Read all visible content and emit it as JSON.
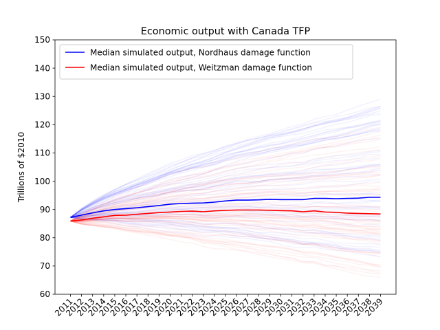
{
  "chart_data": {
    "type": "line",
    "title": "Economic output with Canada TFP",
    "xlabel": "",
    "ylabel": "Trillions of $2010",
    "ylim": [
      60,
      150
    ],
    "yticks": [
      60,
      70,
      80,
      90,
      100,
      110,
      120,
      130,
      140,
      150
    ],
    "x": [
      "2011",
      "2012",
      "2013",
      "2014",
      "2015",
      "2016",
      "2017",
      "2018",
      "2019",
      "2020",
      "2021",
      "2022",
      "2023",
      "2024",
      "2025",
      "2026",
      "2027",
      "2028",
      "2029",
      "2030",
      "2031",
      "2032",
      "2033",
      "2034",
      "2035",
      "2036",
      "2037",
      "2038",
      "2039"
    ],
    "grid": false,
    "legend_position": "upper-left",
    "series": [
      {
        "name": "Median simulated output, Nordhaus damage function",
        "color": "#0000ff",
        "values": [
          87.2,
          88.0,
          88.8,
          89.5,
          90.0,
          90.3,
          90.6,
          91.0,
          91.4,
          91.9,
          92.1,
          92.2,
          92.3,
          92.6,
          93.0,
          93.3,
          93.3,
          93.4,
          93.6,
          93.5,
          93.5,
          93.5,
          93.9,
          93.9,
          93.8,
          93.9,
          94.0,
          94.3,
          94.3
        ]
      },
      {
        "name": "Median simulated output, Weitzman damage function",
        "color": "#ff0000",
        "values": [
          85.9,
          86.3,
          86.9,
          87.4,
          87.9,
          88.0,
          88.3,
          88.6,
          88.9,
          89.1,
          89.3,
          89.4,
          89.2,
          89.5,
          89.7,
          89.8,
          89.8,
          89.8,
          89.7,
          89.6,
          89.5,
          89.2,
          89.5,
          89.1,
          89.0,
          88.7,
          88.6,
          88.5,
          88.4
        ]
      }
    ],
    "simulation_bands": [
      {
        "series": "Median simulated output, Nordhaus damage function",
        "color": "#0000ff",
        "start": 87.2,
        "low_2039": 74,
        "high_2039": 132
      },
      {
        "series": "Median simulated output, Weitzman damage function",
        "color": "#ff0000",
        "start": 85.9,
        "low_2039": 66,
        "high_2039": 122
      }
    ]
  }
}
